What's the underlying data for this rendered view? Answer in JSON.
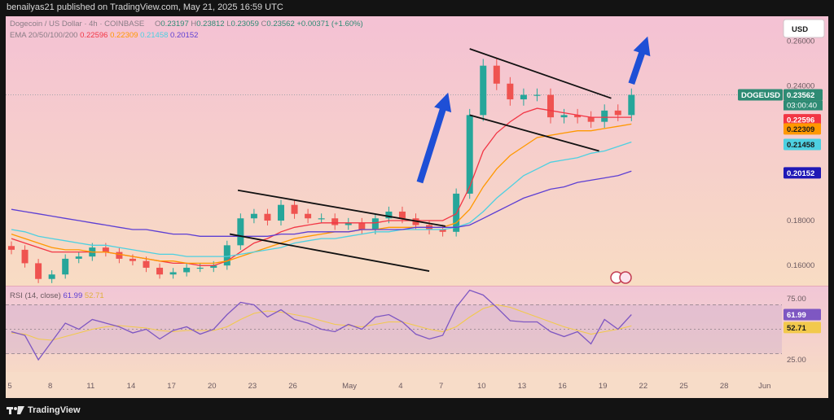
{
  "header": {
    "published_by": "benailyas21 published on TradingView.com, May 21, 2025 16:59 UTC"
  },
  "legend": {
    "symbol_line": "Dogecoin / US Dollar · 4h · COINBASE",
    "ohlc": {
      "o_label": "O",
      "o": "0.23197",
      "h_label": "H",
      "h": "0.23812",
      "l_label": "L",
      "l": "0.23059",
      "c_label": "C",
      "c": "0.23562",
      "change": "+0.00371 (+1.60%)"
    },
    "ema_line": "EMA 20/50/100/200",
    "ema_values": [
      "0.22596",
      "0.22309",
      "0.21458",
      "0.20152"
    ]
  },
  "currency_button": "USD",
  "price_axis": {
    "ticks": [
      "0.26000",
      "0.24000",
      "0.18000",
      "0.16000"
    ],
    "symbol_tag": "DOGEUSD",
    "price_tag": "0.23562",
    "countdown": "03:00:40"
  },
  "rsi": {
    "legend": "RSI (14, close)",
    "value": "61.99",
    "ma_value": "52.71",
    "ticks": [
      "75.00",
      "25.00"
    ],
    "upper_level": 70,
    "lower_level": 30,
    "mid_level": 50
  },
  "time_axis": {
    "labels": [
      "5",
      "8",
      "11",
      "14",
      "17",
      "20",
      "23",
      "26",
      "May",
      "4",
      "7",
      "10",
      "13",
      "16",
      "19",
      "22",
      "25",
      "28",
      "Jun"
    ]
  },
  "footer": {
    "brand": "TradingView"
  },
  "colors": {
    "ema20": "#f23645",
    "ema50": "#ff9800",
    "ema100": "#4dd0e1",
    "ema200": "#5d3fd3",
    "up": "#26a69a",
    "down": "#ef5350",
    "rsi_line": "#7e57c2",
    "rsi_ma": "#f2c94c",
    "arrow": "#1e4fd6",
    "channel": "#111111"
  },
  "chart_data": [
    {
      "type": "candlestick",
      "title": "Dogecoin / US Dollar · 4h · COINBASE",
      "ylim": [
        0.151,
        0.271
      ],
      "x": [
        "Apr 5",
        "Apr 6",
        "Apr 7",
        "Apr 8",
        "Apr 9",
        "Apr 10",
        "Apr 11",
        "Apr 12",
        "Apr 13",
        "Apr 14",
        "Apr 15",
        "Apr 16",
        "Apr 17",
        "Apr 18",
        "Apr 19",
        "Apr 20",
        "Apr 21",
        "Apr 22",
        "Apr 23",
        "Apr 24",
        "Apr 25",
        "Apr 26",
        "Apr 27",
        "Apr 28",
        "Apr 29",
        "Apr 30",
        "May 1",
        "May 2",
        "May 3",
        "May 4",
        "May 5",
        "May 6",
        "May 7",
        "May 8",
        "May 9",
        "May 10",
        "May 11",
        "May 12",
        "May 13",
        "May 14",
        "May 15",
        "May 16",
        "May 17",
        "May 18",
        "May 19",
        "May 20",
        "May 21"
      ],
      "series": [
        {
          "name": "close",
          "values": [
            0.167,
            0.161,
            0.154,
            0.156,
            0.163,
            0.164,
            0.168,
            0.166,
            0.163,
            0.162,
            0.159,
            0.156,
            0.157,
            0.159,
            0.159,
            0.16,
            0.169,
            0.181,
            0.183,
            0.18,
            0.187,
            0.183,
            0.181,
            0.181,
            0.178,
            0.179,
            0.176,
            0.181,
            0.184,
            0.181,
            0.178,
            0.176,
            0.175,
            0.192,
            0.227,
            0.249,
            0.241,
            0.234,
            0.236,
            0.236,
            0.226,
            0.227,
            0.226,
            0.224,
            0.229,
            0.227,
            0.236
          ]
        },
        {
          "name": "EMA 20",
          "values": [
            0.172,
            0.17,
            0.168,
            0.166,
            0.166,
            0.166,
            0.166,
            0.166,
            0.165,
            0.164,
            0.163,
            0.162,
            0.161,
            0.161,
            0.16,
            0.16,
            0.162,
            0.166,
            0.17,
            0.172,
            0.175,
            0.177,
            0.178,
            0.179,
            0.179,
            0.179,
            0.179,
            0.179,
            0.18,
            0.18,
            0.18,
            0.18,
            0.18,
            0.183,
            0.195,
            0.211,
            0.219,
            0.224,
            0.228,
            0.23,
            0.229,
            0.228,
            0.227,
            0.226,
            0.226,
            0.226,
            0.226
          ]
        },
        {
          "name": "EMA 50",
          "values": [
            0.174,
            0.172,
            0.17,
            0.168,
            0.167,
            0.167,
            0.166,
            0.166,
            0.165,
            0.164,
            0.163,
            0.162,
            0.162,
            0.161,
            0.161,
            0.161,
            0.162,
            0.164,
            0.166,
            0.168,
            0.17,
            0.172,
            0.173,
            0.174,
            0.175,
            0.175,
            0.176,
            0.176,
            0.177,
            0.177,
            0.177,
            0.177,
            0.177,
            0.179,
            0.185,
            0.195,
            0.203,
            0.209,
            0.213,
            0.217,
            0.218,
            0.219,
            0.22,
            0.22,
            0.221,
            0.222,
            0.223
          ]
        },
        {
          "name": "EMA 100",
          "values": [
            0.176,
            0.175,
            0.173,
            0.172,
            0.171,
            0.17,
            0.169,
            0.169,
            0.168,
            0.167,
            0.166,
            0.165,
            0.165,
            0.164,
            0.164,
            0.164,
            0.164,
            0.165,
            0.166,
            0.167,
            0.168,
            0.17,
            0.171,
            0.172,
            0.172,
            0.173,
            0.174,
            0.175,
            0.175,
            0.176,
            0.176,
            0.176,
            0.176,
            0.177,
            0.179,
            0.184,
            0.19,
            0.195,
            0.2,
            0.203,
            0.206,
            0.207,
            0.208,
            0.21,
            0.211,
            0.213,
            0.215
          ]
        },
        {
          "name": "EMA 200",
          "values": [
            0.185,
            0.184,
            0.183,
            0.182,
            0.181,
            0.18,
            0.179,
            0.178,
            0.177,
            0.176,
            0.176,
            0.175,
            0.174,
            0.174,
            0.173,
            0.173,
            0.173,
            0.173,
            0.173,
            0.173,
            0.174,
            0.174,
            0.175,
            0.175,
            0.175,
            0.175,
            0.176,
            0.176,
            0.176,
            0.176,
            0.177,
            0.177,
            0.177,
            0.177,
            0.178,
            0.181,
            0.184,
            0.187,
            0.19,
            0.192,
            0.194,
            0.195,
            0.197,
            0.198,
            0.199,
            0.2,
            0.202
          ]
        }
      ],
      "annotations": [
        "upper channel line, descending flag Apr 21–May 7",
        "lower channel line, descending flag Apr 21–May 7",
        "upper flag line May 10–May 21",
        "lower flag line May 10–May 21",
        "blue breakout arrow near May 9",
        "blue breakout arrow near May 22"
      ]
    },
    {
      "type": "line",
      "title": "RSI (14, close)",
      "ylim": [
        15,
        85
      ],
      "x": [
        "Apr 5",
        "Apr 6",
        "Apr 7",
        "Apr 8",
        "Apr 9",
        "Apr 10",
        "Apr 11",
        "Apr 12",
        "Apr 13",
        "Apr 14",
        "Apr 15",
        "Apr 16",
        "Apr 17",
        "Apr 18",
        "Apr 19",
        "Apr 20",
        "Apr 21",
        "Apr 22",
        "Apr 23",
        "Apr 24",
        "Apr 25",
        "Apr 26",
        "Apr 27",
        "Apr 28",
        "Apr 29",
        "Apr 30",
        "May 1",
        "May 2",
        "May 3",
        "May 4",
        "May 5",
        "May 6",
        "May 7",
        "May 8",
        "May 9",
        "May 10",
        "May 11",
        "May 12",
        "May 13",
        "May 14",
        "May 15",
        "May 16",
        "May 17",
        "May 18",
        "May 19",
        "May 20",
        "May 21"
      ],
      "series": [
        {
          "name": "RSI",
          "values": [
            48,
            45,
            25,
            40,
            55,
            50,
            58,
            55,
            52,
            47,
            50,
            42,
            49,
            52,
            46,
            50,
            62,
            72,
            70,
            60,
            66,
            58,
            55,
            50,
            48,
            54,
            50,
            60,
            62,
            56,
            46,
            42,
            45,
            68,
            82,
            78,
            68,
            57,
            56,
            56,
            48,
            44,
            48,
            38,
            58,
            50,
            61.99
          ]
        },
        {
          "name": "RSI MA",
          "values": [
            47,
            46,
            42,
            41,
            44,
            47,
            50,
            52,
            53,
            52,
            51,
            49,
            48,
            49,
            49,
            49,
            52,
            58,
            63,
            65,
            64,
            62,
            60,
            57,
            54,
            53,
            52,
            54,
            56,
            56,
            53,
            50,
            48,
            52,
            60,
            67,
            70,
            68,
            64,
            60,
            56,
            52,
            49,
            46,
            48,
            50,
            52.71
          ]
        }
      ],
      "levels": [
        70,
        50,
        30
      ]
    }
  ]
}
